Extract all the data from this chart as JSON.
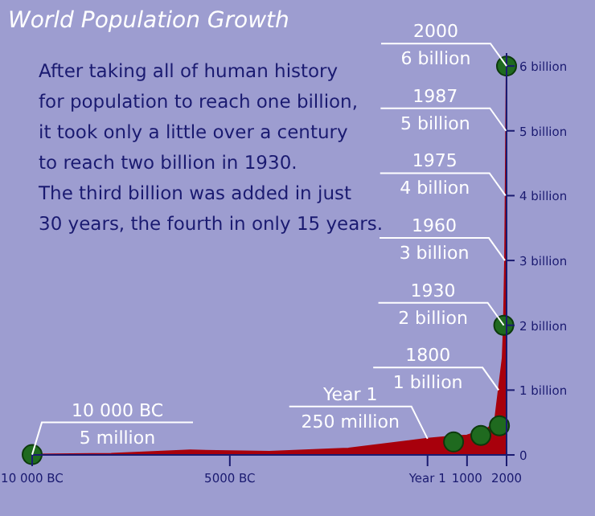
{
  "chart_data": {
    "type": "area",
    "title": "World Population Growth",
    "x": [
      -10000,
      -8000,
      -6000,
      -4000,
      -2000,
      1,
      500,
      1000,
      1500,
      1700,
      1800,
      1900,
      1930,
      1960,
      1975,
      1987,
      2000
    ],
    "series": [
      {
        "color": "#a8000c",
        "values": [
          0.005,
          0.02,
          0.07,
          0.05,
          0.1,
          0.25,
          0.28,
          0.3,
          0.4,
          0.5,
          1,
          1.5,
          2,
          3,
          4,
          5,
          6
        ]
      },
      {
        "type": "scatter",
        "marker": "circle",
        "color": "#1f6a1f",
        "x": [
          -10000,
          660,
          1350,
          1820,
          1930,
          2000
        ],
        "values": [
          0.005,
          0.2,
          0.3,
          0.45,
          2,
          6
        ]
      }
    ],
    "xlim": [
      -10000,
      2000
    ],
    "xticks": [
      {
        "value": -10000,
        "label": "10 000 BC"
      },
      {
        "value": -5000,
        "label": "5000 BC"
      },
      {
        "value": 1,
        "label": "Year 1"
      },
      1000,
      2000
    ],
    "ylim": [
      0,
      6.2
    ],
    "yticks": [
      0,
      {
        "value": 1,
        "label": "1 billion"
      },
      {
        "value": 2,
        "label": "2 billion"
      },
      {
        "value": 3,
        "label": "3 billion"
      },
      {
        "value": 4,
        "label": "4 billion"
      },
      {
        "value": 5,
        "label": "5 billion"
      },
      {
        "value": 6,
        "label": "6 billion"
      }
    ],
    "grid": false,
    "subtitle": "After taking all of human history\nfor population to reach one billion,\nit took only a little over a century\nto reach two billion in 1930.\nThe third billion was added in just\n30 years, the fourth in only 15 years.",
    "annotations": [
      {
        "text": "10 000 BC\n5 million",
        "x": -10000,
        "y": 0.005
      },
      {
        "text": "Year 1\n250 million",
        "x": 1,
        "y": 0.25
      },
      {
        "text": "1800\n1 billion",
        "x": 1800,
        "y": 1
      },
      {
        "text": "1930\n2 billion",
        "x": 1930,
        "y": 2
      },
      {
        "text": "1960\n3 billion",
        "x": 1960,
        "y": 3
      },
      {
        "text": "1975\n4 billion",
        "x": 1975,
        "y": 4
      },
      {
        "text": "1987\n5 billion",
        "x": 1987,
        "y": 5
      },
      {
        "text": "2000\n6 billion",
        "x": 2000,
        "y": 6
      }
    ]
  }
}
